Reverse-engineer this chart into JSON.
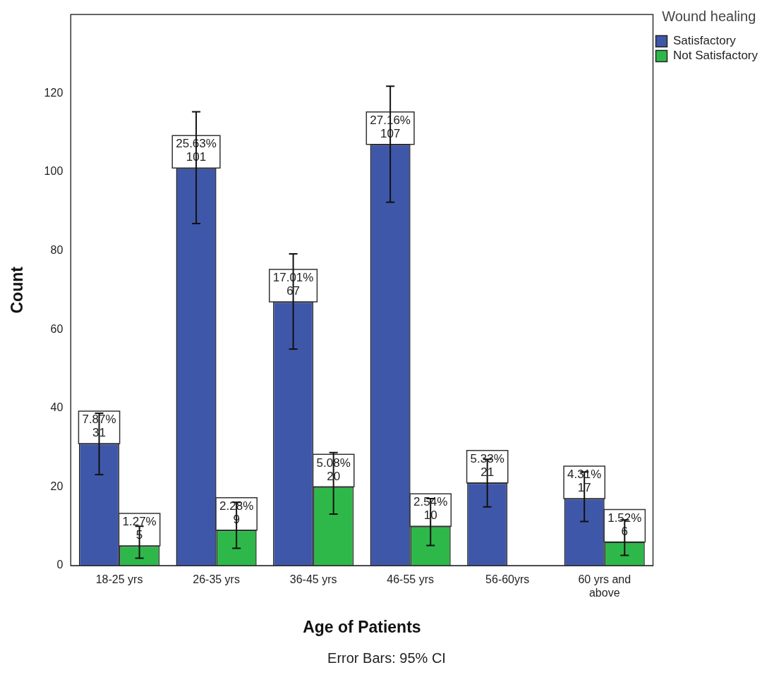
{
  "chart_data": {
    "type": "bar",
    "xlabel": "Age of Patients",
    "ylabel": "Count",
    "legend_title": "Wound healing",
    "legend": "top right",
    "categories": [
      "18-25 yrs",
      "26-35 yrs",
      "36-45 yrs",
      "46-55 yrs",
      "56-60yrs",
      "60 yrs and above"
    ],
    "series": [
      {
        "name": "Satisfactory",
        "color": "#3f57a8",
        "values": [
          31,
          101,
          67,
          107,
          21,
          17
        ],
        "errors": [
          [
            23.1,
            38.7
          ],
          [
            86.9,
            115.3
          ],
          [
            55,
            79.2
          ],
          [
            92.3,
            121.8
          ],
          [
            14.9,
            27
          ],
          [
            11.2,
            23.8
          ]
        ],
        "value_labels": [
          "7.87%\n31",
          "25.63%\n101",
          "17.01%\n67",
          "27.16%\n107",
          "5.33%\n21",
          "4.31%\n17"
        ]
      },
      {
        "name": "Not Satisfactory",
        "color": "#2eb84a",
        "values": [
          5,
          9,
          20,
          10,
          null,
          6
        ],
        "errors": [
          [
            1.9,
            10
          ],
          [
            4.4,
            16.1
          ],
          [
            13.1,
            28.7
          ],
          [
            5.1,
            17
          ],
          null,
          [
            2.6,
            11.6
          ]
        ],
        "value_labels": [
          "1.27%\n5",
          "2.28%\n9",
          "5.08%\n20",
          "2.54%\n10",
          null,
          "1.52%\n6"
        ]
      }
    ],
    "ylim": [
      0,
      140
    ],
    "yticks": [
      0,
      20,
      40,
      60,
      80,
      100,
      120
    ],
    "grid": false,
    "annotations": [
      "Error Bars: 95% CI"
    ]
  }
}
